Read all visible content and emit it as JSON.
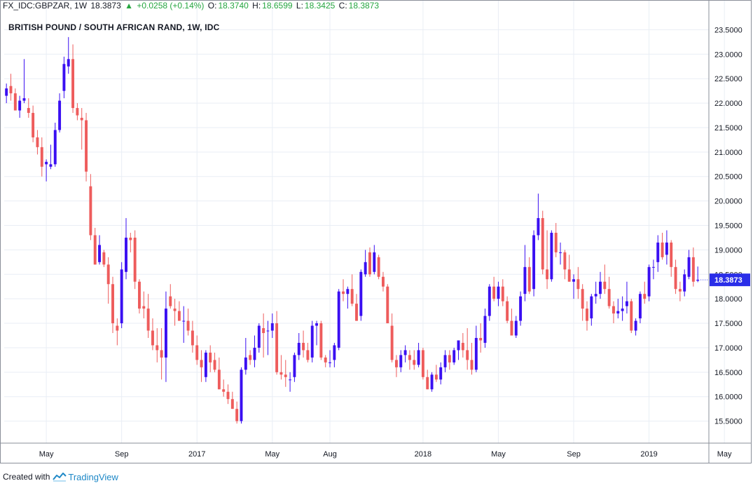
{
  "header": {
    "symbol": "FX_IDC:GBPZAR, 1W",
    "last": "18.3873",
    "change": "+0.0258 (+0.14%)",
    "open_label": "O:",
    "open": "18.3740",
    "high_label": "H:",
    "high": "18.6599",
    "low_label": "L:",
    "low": "18.3425",
    "close_label": "C:",
    "close": "18.3873"
  },
  "footer": {
    "created_with": "Created with",
    "brand": "TradingView"
  },
  "colors": {
    "up": "#3a0ff2",
    "down": "#ee5c5c",
    "grid": "#e9eef5",
    "price_label": "#2a2ee8"
  },
  "icons": {
    "change": "triangle-up-icon",
    "logo": "tradingview-logo-icon"
  },
  "chart_data": {
    "type": "candlestick",
    "title": "BRITISH POUND / SOUTH AFRICAN RAND, 1W, IDC",
    "current_price": "18.3873",
    "ylim": [
      15.05,
      23.85
    ],
    "y_ticks": [
      "15.5000",
      "16.0000",
      "16.5000",
      "17.0000",
      "17.5000",
      "18.0000",
      "18.5000",
      "19.0000",
      "19.5000",
      "20.0000",
      "20.5000",
      "21.0000",
      "21.5000",
      "22.0000",
      "22.5000",
      "23.0000",
      "23.5000"
    ],
    "x_ticks": [
      {
        "label": "May",
        "index": 9
      },
      {
        "label": "Sep",
        "index": 26
      },
      {
        "label": "2017",
        "index": 43
      },
      {
        "label": "May",
        "index": 60
      },
      {
        "label": "Aug",
        "index": 73
      },
      {
        "label": "2018",
        "index": 94
      },
      {
        "label": "May",
        "index": 111
      },
      {
        "label": "Sep",
        "index": 128
      },
      {
        "label": "2019",
        "index": 145
      },
      {
        "label": "May",
        "index": 162
      }
    ],
    "candles": [
      [
        22.15,
        22.4,
        22.0,
        22.3
      ],
      [
        22.35,
        22.6,
        22.05,
        22.2
      ],
      [
        22.2,
        22.3,
        21.9,
        21.85
      ],
      [
        21.85,
        22.15,
        21.7,
        22.05
      ],
      [
        22.05,
        22.9,
        22.0,
        22.1
      ],
      [
        21.9,
        22.1,
        21.7,
        21.8
      ],
      [
        21.8,
        21.95,
        21.2,
        21.3
      ],
      [
        21.3,
        21.45,
        20.95,
        21.1
      ],
      [
        21.1,
        21.3,
        20.5,
        20.7
      ],
      [
        20.75,
        20.85,
        20.4,
        20.8
      ],
      [
        20.7,
        21.15,
        20.65,
        20.75
      ],
      [
        20.75,
        21.6,
        20.7,
        21.45
      ],
      [
        21.45,
        22.2,
        21.4,
        22.05
      ],
      [
        22.25,
        22.95,
        22.1,
        22.8
      ],
      [
        22.75,
        23.35,
        22.6,
        22.9
      ],
      [
        22.9,
        23.2,
        21.8,
        21.9
      ],
      [
        21.9,
        22.0,
        21.65,
        21.75
      ],
      [
        21.7,
        21.9,
        21.05,
        21.65
      ],
      [
        21.65,
        21.8,
        20.4,
        20.6
      ],
      [
        20.3,
        20.55,
        19.2,
        19.3
      ],
      [
        19.3,
        19.45,
        18.7,
        18.7
      ],
      [
        18.75,
        19.3,
        18.7,
        19.1
      ],
      [
        18.95,
        19.0,
        18.65,
        18.7
      ],
      [
        18.7,
        18.85,
        17.9,
        18.3
      ],
      [
        18.3,
        18.45,
        17.3,
        17.5
      ],
      [
        17.45,
        17.6,
        17.05,
        17.35
      ],
      [
        17.5,
        18.75,
        17.4,
        18.6
      ],
      [
        18.55,
        19.65,
        18.4,
        19.25
      ],
      [
        19.25,
        19.35,
        18.95,
        19.2
      ],
      [
        19.25,
        19.4,
        18.2,
        18.35
      ],
      [
        18.35,
        18.4,
        17.7,
        17.8
      ],
      [
        17.85,
        18.15,
        17.6,
        17.8
      ],
      [
        17.8,
        18.1,
        17.2,
        17.35
      ],
      [
        17.35,
        17.6,
        16.95,
        17.05
      ],
      [
        17.05,
        17.4,
        16.7,
        16.95
      ],
      [
        16.95,
        17.4,
        16.35,
        16.8
      ],
      [
        16.8,
        18.15,
        16.3,
        17.8
      ],
      [
        18.05,
        18.3,
        17.8,
        17.85
      ],
      [
        17.8,
        18.0,
        17.45,
        17.75
      ],
      [
        17.75,
        17.95,
        17.55,
        17.55
      ],
      [
        17.55,
        17.85,
        17.1,
        17.55
      ],
      [
        17.55,
        17.8,
        17.25,
        17.35
      ],
      [
        17.35,
        17.55,
        16.9,
        17.05
      ],
      [
        17.05,
        17.25,
        16.65,
        16.75
      ],
      [
        16.75,
        16.95,
        16.3,
        16.6
      ],
      [
        16.4,
        16.95,
        16.3,
        16.9
      ],
      [
        16.9,
        17.05,
        16.5,
        16.7
      ],
      [
        16.75,
        16.9,
        16.5,
        16.55
      ],
      [
        16.55,
        16.8,
        16.15,
        16.15
      ],
      [
        16.15,
        16.35,
        16.0,
        16.1
      ],
      [
        16.1,
        16.25,
        15.85,
        15.95
      ],
      [
        15.95,
        16.1,
        15.75,
        15.75
      ],
      [
        15.75,
        15.9,
        15.45,
        15.5
      ],
      [
        15.5,
        16.6,
        15.45,
        16.55
      ],
      [
        16.55,
        17.2,
        16.45,
        16.8
      ],
      [
        16.85,
        16.95,
        16.65,
        16.75
      ],
      [
        16.75,
        17.25,
        16.6,
        17.0
      ],
      [
        17.0,
        17.5,
        16.9,
        17.45
      ],
      [
        17.4,
        17.7,
        16.8,
        17.3
      ],
      [
        17.35,
        17.55,
        16.85,
        17.35
      ],
      [
        17.35,
        17.7,
        17.2,
        17.5
      ],
      [
        17.5,
        17.75,
        16.45,
        16.5
      ],
      [
        16.5,
        16.85,
        16.35,
        16.45
      ],
      [
        16.45,
        16.75,
        16.2,
        16.4
      ],
      [
        16.35,
        16.5,
        16.1,
        16.35
      ],
      [
        16.4,
        16.9,
        16.3,
        16.85
      ],
      [
        16.85,
        17.3,
        16.75,
        17.1
      ],
      [
        17.1,
        17.35,
        16.8,
        16.95
      ],
      [
        16.95,
        17.1,
        16.7,
        16.75
      ],
      [
        16.8,
        17.55,
        16.7,
        17.45
      ],
      [
        17.45,
        17.55,
        17.05,
        17.5
      ],
      [
        17.5,
        17.55,
        16.75,
        16.8
      ],
      [
        16.8,
        16.85,
        16.6,
        16.7
      ],
      [
        16.7,
        16.95,
        16.6,
        16.7
      ],
      [
        16.75,
        17.1,
        16.6,
        17.05
      ],
      [
        17.0,
        18.2,
        16.95,
        18.15
      ],
      [
        18.15,
        18.4,
        17.95,
        18.1
      ],
      [
        18.1,
        18.25,
        17.8,
        18.2
      ],
      [
        18.2,
        18.5,
        17.85,
        17.9
      ],
      [
        17.9,
        18.1,
        17.55,
        17.55
      ],
      [
        17.65,
        18.6,
        17.55,
        18.55
      ],
      [
        18.5,
        19.0,
        18.45,
        18.75
      ],
      [
        18.95,
        19.05,
        18.45,
        18.5
      ],
      [
        18.55,
        19.1,
        18.5,
        18.95
      ],
      [
        18.85,
        18.9,
        18.4,
        18.45
      ],
      [
        18.45,
        18.55,
        18.15,
        18.25
      ],
      [
        18.25,
        18.3,
        17.5,
        17.5
      ],
      [
        17.45,
        17.7,
        16.7,
        16.75
      ],
      [
        16.75,
        16.85,
        16.4,
        16.6
      ],
      [
        16.6,
        16.95,
        16.5,
        16.85
      ],
      [
        16.85,
        17.05,
        16.7,
        16.95
      ],
      [
        16.85,
        16.95,
        16.55,
        16.75
      ],
      [
        16.75,
        16.95,
        16.55,
        16.65
      ],
      [
        16.65,
        17.1,
        16.6,
        16.95
      ],
      [
        16.95,
        17.0,
        16.35,
        16.4
      ],
      [
        16.4,
        16.55,
        16.15,
        16.15
      ],
      [
        16.15,
        16.5,
        16.1,
        16.45
      ],
      [
        16.45,
        16.65,
        16.3,
        16.35
      ],
      [
        16.35,
        16.7,
        16.25,
        16.6
      ],
      [
        16.6,
        16.95,
        16.5,
        16.85
      ],
      [
        16.85,
        16.95,
        16.55,
        16.7
      ],
      [
        16.7,
        17.0,
        16.65,
        16.95
      ],
      [
        16.95,
        17.15,
        16.75,
        17.15
      ],
      [
        17.1,
        17.3,
        16.8,
        16.95
      ],
      [
        16.95,
        17.4,
        16.55,
        16.75
      ],
      [
        16.75,
        17.1,
        16.45,
        16.55
      ],
      [
        16.55,
        17.45,
        16.5,
        17.2
      ],
      [
        17.2,
        17.5,
        16.9,
        17.15
      ],
      [
        17.1,
        17.8,
        17.0,
        17.65
      ],
      [
        17.65,
        18.3,
        17.55,
        18.25
      ],
      [
        18.25,
        18.45,
        17.95,
        18.0
      ],
      [
        18.0,
        18.35,
        17.85,
        18.25
      ],
      [
        18.25,
        18.4,
        17.85,
        17.95
      ],
      [
        17.95,
        18.05,
        17.5,
        17.55
      ],
      [
        17.55,
        17.8,
        17.25,
        17.25
      ],
      [
        17.25,
        17.65,
        17.2,
        17.55
      ],
      [
        17.55,
        18.15,
        17.45,
        18.05
      ],
      [
        18.1,
        19.1,
        17.95,
        18.65
      ],
      [
        18.65,
        18.85,
        18.1,
        18.15
      ],
      [
        18.2,
        19.4,
        18.05,
        19.3
      ],
      [
        19.3,
        20.15,
        19.2,
        19.65
      ],
      [
        19.65,
        19.8,
        18.5,
        18.6
      ],
      [
        18.6,
        19.4,
        18.2,
        18.4
      ],
      [
        18.4,
        19.4,
        18.35,
        19.35
      ],
      [
        19.35,
        19.55,
        18.85,
        18.95
      ],
      [
        18.95,
        19.15,
        18.7,
        18.95
      ],
      [
        18.95,
        19.0,
        18.4,
        18.6
      ],
      [
        18.6,
        18.9,
        18.35,
        18.35
      ],
      [
        18.35,
        18.5,
        18.0,
        18.4
      ],
      [
        18.4,
        18.65,
        18.0,
        18.2
      ],
      [
        18.2,
        18.3,
        17.55,
        17.8
      ],
      [
        17.8,
        17.95,
        17.35,
        17.55
      ],
      [
        17.6,
        18.1,
        17.45,
        18.05
      ],
      [
        18.05,
        18.35,
        17.9,
        18.1
      ],
      [
        18.1,
        18.55,
        18.0,
        18.35
      ],
      [
        18.35,
        18.7,
        18.1,
        18.2
      ],
      [
        18.2,
        18.45,
        17.8,
        17.85
      ],
      [
        17.85,
        17.95,
        17.5,
        17.7
      ],
      [
        17.7,
        18.0,
        17.6,
        17.75
      ],
      [
        17.75,
        18.05,
        17.55,
        17.8
      ],
      [
        17.85,
        18.35,
        17.7,
        17.95
      ],
      [
        17.95,
        18.0,
        17.3,
        17.35
      ],
      [
        17.35,
        17.6,
        17.25,
        17.55
      ],
      [
        17.6,
        18.15,
        17.5,
        18.1
      ],
      [
        18.1,
        18.35,
        17.9,
        18.0
      ],
      [
        18.05,
        18.7,
        17.95,
        18.65
      ],
      [
        18.65,
        18.8,
        18.4,
        18.65
      ],
      [
        18.75,
        19.3,
        18.55,
        19.15
      ],
      [
        19.15,
        19.35,
        18.8,
        18.85
      ],
      [
        18.9,
        19.4,
        18.7,
        19.15
      ],
      [
        19.15,
        19.2,
        18.45,
        18.65
      ],
      [
        18.65,
        18.8,
        18.1,
        18.2
      ],
      [
        18.2,
        18.35,
        17.95,
        18.15
      ],
      [
        18.15,
        18.6,
        18.05,
        18.5
      ],
      [
        18.45,
        19.0,
        18.4,
        18.85
      ],
      [
        18.85,
        19.05,
        18.25,
        18.35
      ],
      [
        18.37,
        18.66,
        18.34,
        18.39
      ]
    ]
  }
}
